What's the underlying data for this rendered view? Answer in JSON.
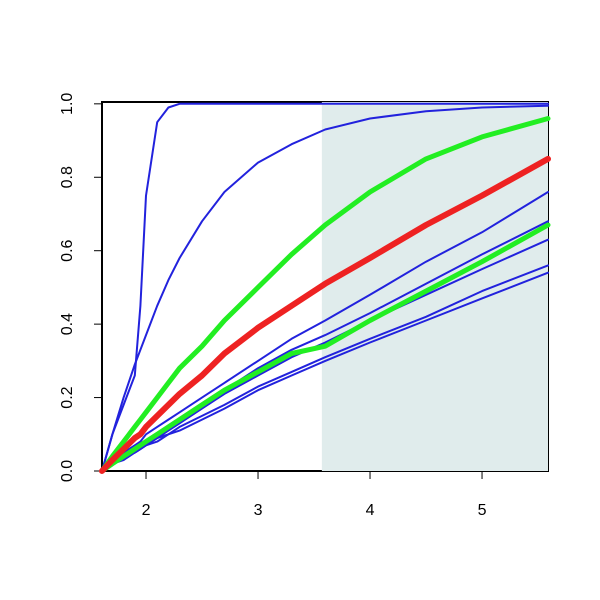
{
  "chart_data": {
    "type": "line",
    "x": [
      1.607,
      1.7,
      1.8,
      1.9,
      1.95,
      2.0,
      2.1,
      2.2,
      2.3,
      2.5,
      2.7,
      3.0,
      3.3,
      3.6,
      4.0,
      4.5,
      5.0,
      5.589
    ],
    "series": [
      {
        "color": "#2222dd",
        "width": 2,
        "values": [
          0,
          0.1,
          0.18,
          0.26,
          0.45,
          0.75,
          0.95,
          0.99,
          1,
          1,
          1,
          1,
          1,
          1,
          1,
          1,
          1,
          1
        ]
      },
      {
        "color": "#2222dd",
        "width": 2,
        "values": [
          0,
          0.1,
          0.2,
          0.29,
          0.33,
          0.37,
          0.45,
          0.52,
          0.58,
          0.68,
          0.76,
          0.84,
          0.89,
          0.93,
          0.96,
          0.98,
          0.99,
          0.995
        ]
      },
      {
        "color": "#2222dd",
        "width": 2,
        "values": [
          0,
          0.03,
          0.05,
          0.07,
          0.08,
          0.1,
          0.12,
          0.14,
          0.16,
          0.2,
          0.24,
          0.3,
          0.36,
          0.41,
          0.48,
          0.57,
          0.65,
          0.76
        ]
      },
      {
        "color": "#2222dd",
        "width": 2,
        "values": [
          0,
          0.02,
          0.04,
          0.06,
          0.07,
          0.08,
          0.1,
          0.12,
          0.14,
          0.18,
          0.22,
          0.28,
          0.33,
          0.37,
          0.43,
          0.51,
          0.59,
          0.68
        ]
      },
      {
        "color": "#2222dd",
        "width": 2,
        "values": [
          0,
          0.02,
          0.04,
          0.05,
          0.06,
          0.07,
          0.09,
          0.11,
          0.13,
          0.17,
          0.21,
          0.26,
          0.31,
          0.35,
          0.41,
          0.48,
          0.55,
          0.63
        ]
      },
      {
        "color": "#2222dd",
        "width": 2,
        "values": [
          0,
          0.02,
          0.04,
          0.05,
          0.06,
          0.07,
          0.09,
          0.1,
          0.12,
          0.15,
          0.18,
          0.23,
          0.27,
          0.31,
          0.36,
          0.42,
          0.49,
          0.56
        ]
      },
      {
        "color": "#2222dd",
        "width": 2,
        "values": [
          0,
          0.02,
          0.03,
          0.05,
          0.06,
          0.07,
          0.08,
          0.1,
          0.11,
          0.14,
          0.17,
          0.22,
          0.26,
          0.3,
          0.35,
          0.41,
          0.47,
          0.54
        ]
      },
      {
        "color": "#22ee22",
        "width": 5,
        "values": [
          0,
          0.04,
          0.08,
          0.12,
          0.14,
          0.16,
          0.2,
          0.24,
          0.28,
          0.34,
          0.41,
          0.5,
          0.59,
          0.67,
          0.76,
          0.85,
          0.91,
          0.96
        ]
      },
      {
        "color": "#22ee22",
        "width": 5,
        "values": [
          0,
          0.02,
          0.04,
          0.06,
          0.07,
          0.08,
          0.1,
          0.12,
          0.14,
          0.18,
          0.22,
          0.27,
          0.32,
          0.34,
          0.41,
          0.49,
          0.57,
          0.67
        ]
      },
      {
        "color": "#ee2222",
        "width": 6,
        "values": [
          0,
          0.03,
          0.06,
          0.09,
          0.1,
          0.12,
          0.15,
          0.18,
          0.21,
          0.26,
          0.32,
          0.39,
          0.45,
          0.51,
          0.58,
          0.67,
          0.75,
          0.85
        ]
      }
    ],
    "shade": {
      "xlim": [
        3.57,
        5.589
      ],
      "color": "#e0ecec"
    },
    "xlim": [
      1.607,
      5.589
    ],
    "ylim": [
      0,
      1.005
    ],
    "xticks": [
      2,
      3,
      4,
      5
    ],
    "yticks": [
      {
        "value": 0,
        "label": "0.0"
      },
      0.2,
      0.4,
      0.6,
      0.8,
      {
        "value": 1,
        "label": "1.0"
      }
    ]
  }
}
